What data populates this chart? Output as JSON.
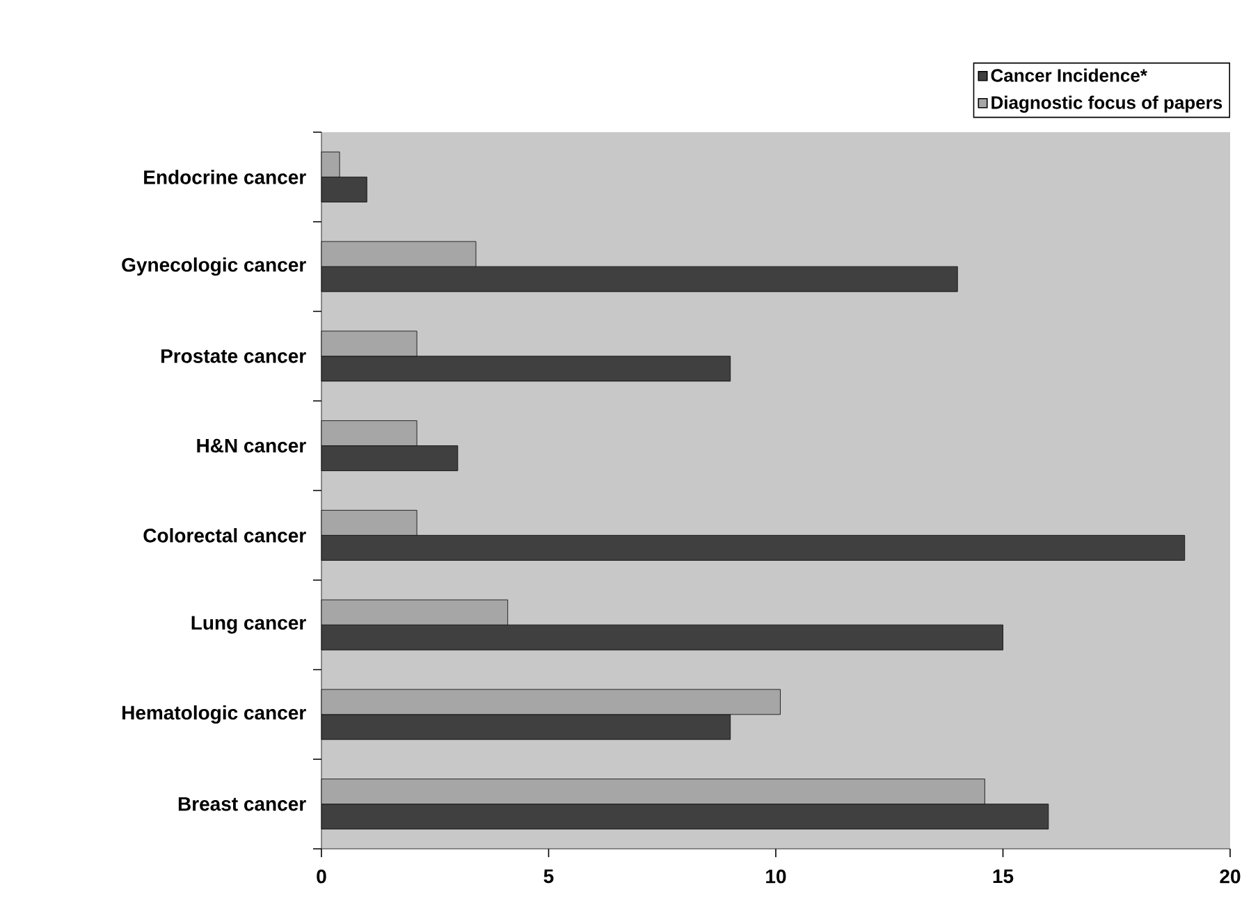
{
  "chart_data": {
    "type": "bar",
    "orientation": "horizontal",
    "categories": [
      "Endocrine cancer",
      "Gynecologic cancer",
      "Prostate cancer",
      "H&N cancer",
      "Colorectal cancer",
      "Lung cancer",
      "Hematologic cancer",
      "Breast cancer"
    ],
    "series": [
      {
        "name": "Cancer Incidence*",
        "color": "#404040",
        "values": [
          1,
          14,
          9,
          3,
          19,
          15,
          9,
          16
        ]
      },
      {
        "name": "Diagnostic focus of papers",
        "color": "#a6a6a6",
        "values": [
          0.4,
          3.4,
          2.1,
          2.1,
          2.1,
          4.1,
          10.1,
          14.6
        ]
      }
    ],
    "xlim": [
      0,
      20
    ],
    "xticks": [
      0,
      5,
      10,
      15,
      20
    ],
    "legend": "top right",
    "grid": false
  }
}
